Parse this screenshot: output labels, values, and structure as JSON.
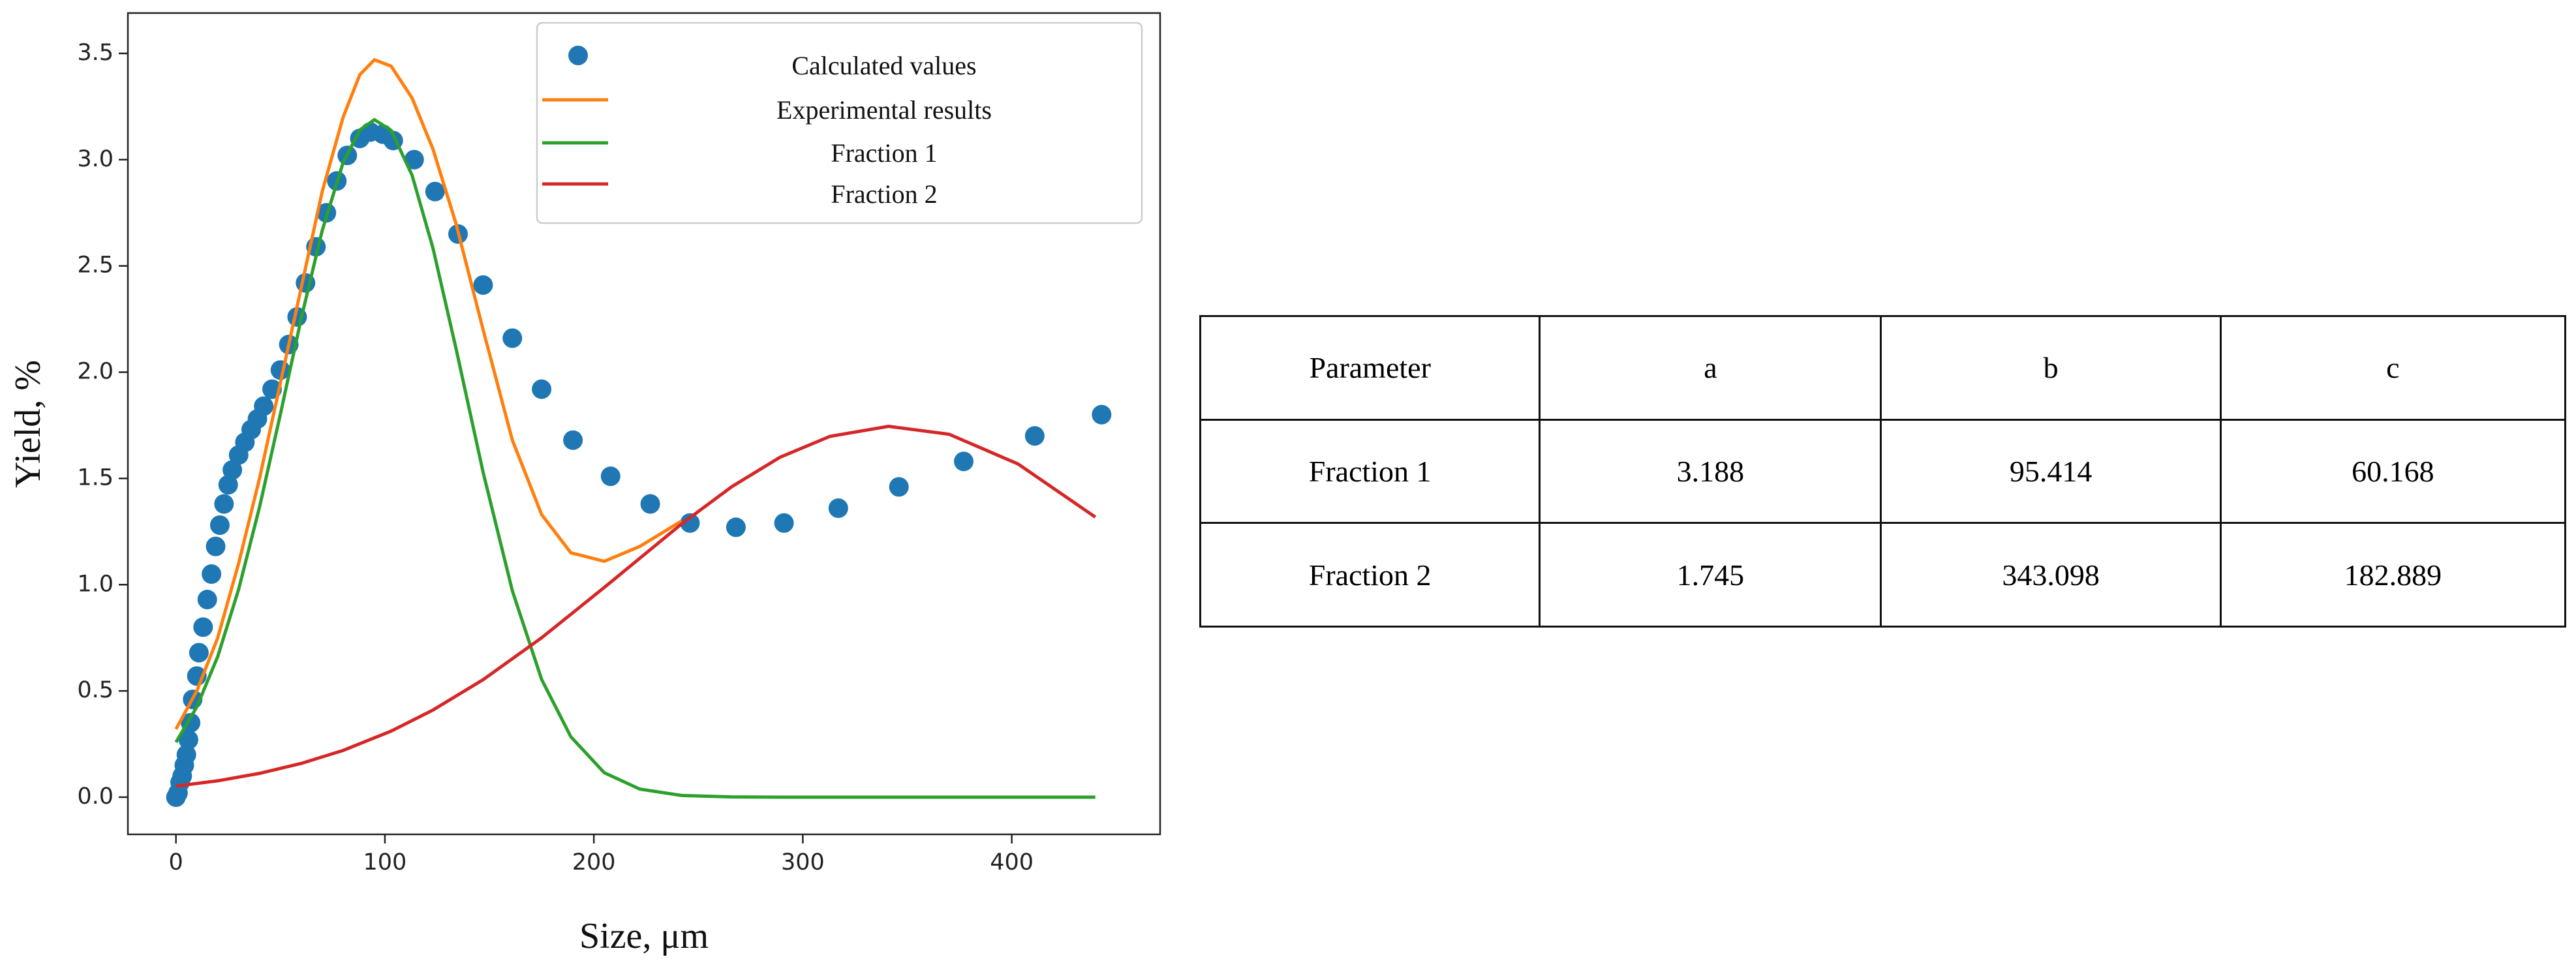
{
  "chart_data": {
    "type": "scatter-line",
    "x_label": "Size, μm",
    "y_label": "Yield, %",
    "xlim": [
      -23,
      471
    ],
    "ylim": [
      -0.175,
      3.69
    ],
    "xticks": [
      0,
      100,
      200,
      300,
      400
    ],
    "yticks": [
      {
        "value": 0,
        "label": "0.0"
      },
      0.5,
      {
        "value": 1,
        "label": "1.0"
      },
      1.5,
      {
        "value": 2,
        "label": "2.0"
      },
      2.5,
      {
        "value": 3,
        "label": "3.0"
      },
      3.5
    ],
    "legend": "upper right",
    "series": [
      {
        "name": "Calculated values",
        "kind": "scatter",
        "color": "#1f77b4",
        "x": [
          0,
          1,
          2,
          3,
          4,
          5,
          6,
          7,
          8,
          10,
          11,
          13,
          15,
          17,
          19,
          21,
          23,
          25,
          27,
          30,
          33,
          36,
          39,
          42,
          46,
          50,
          54,
          58,
          62,
          67,
          72,
          77,
          82,
          88,
          93,
          99,
          104,
          114,
          124,
          135,
          147,
          161,
          175,
          190,
          208,
          227,
          246,
          268,
          291,
          317,
          346,
          377,
          411,
          443
        ],
        "values": [
          0,
          0.02,
          0.07,
          0.1,
          0.15,
          0.2,
          0.27,
          0.35,
          0.46,
          0.57,
          0.68,
          0.8,
          0.93,
          1.05,
          1.18,
          1.28,
          1.38,
          1.47,
          1.54,
          1.61,
          1.67,
          1.73,
          1.78,
          1.84,
          1.92,
          2.01,
          2.13,
          2.26,
          2.42,
          2.59,
          2.75,
          2.9,
          3.02,
          3.1,
          3.13,
          3.12,
          3.09,
          3.0,
          2.85,
          2.65,
          2.41,
          2.16,
          1.92,
          1.68,
          1.51,
          1.38,
          1.29,
          1.27,
          1.29,
          1.36,
          1.46,
          1.58,
          1.7,
          1.8
        ]
      },
      {
        "name": "Experimental results",
        "kind": "line",
        "color": "#ff7f0e",
        "x": [
          0,
          10,
          20,
          30,
          40,
          50,
          60,
          70,
          80,
          88,
          95,
          103,
          113,
          123,
          134,
          147,
          161,
          175,
          189,
          205,
          222,
          242
        ],
        "values": [
          0.32,
          0.5,
          0.75,
          1.1,
          1.5,
          1.95,
          2.4,
          2.85,
          3.2,
          3.4,
          3.47,
          3.44,
          3.29,
          3.05,
          2.7,
          2.2,
          1.68,
          1.33,
          1.15,
          1.11,
          1.18,
          1.3
        ]
      },
      {
        "name": "Fraction 1",
        "kind": "line",
        "color": "#2ca02c",
        "x": [
          0,
          10,
          20,
          30,
          40,
          50,
          60,
          70,
          80,
          88,
          95,
          103,
          113,
          123,
          134,
          147,
          161,
          175,
          189,
          205,
          222,
          242,
          266,
          289,
          313,
          341,
          370,
          403,
          440
        ],
        "values": [
          0.258,
          0.425,
          0.662,
          0.978,
          1.365,
          1.803,
          2.255,
          2.667,
          2.986,
          3.14,
          3.188,
          3.138,
          2.927,
          2.584,
          2.113,
          1.529,
          0.971,
          0.554,
          0.284,
          0.115,
          0.038,
          0.008,
          0.001,
          0,
          0,
          0,
          0,
          0,
          0
        ]
      },
      {
        "name": "Fraction 2",
        "kind": "line",
        "color": "#d62728",
        "x": [
          0,
          20,
          40,
          60,
          80,
          103,
          123,
          147,
          175,
          205,
          242,
          266,
          289,
          313,
          341,
          370,
          403,
          440
        ],
        "values": [
          0.052,
          0.077,
          0.112,
          0.159,
          0.22,
          0.311,
          0.41,
          0.553,
          0.75,
          0.987,
          1.286,
          1.461,
          1.599,
          1.698,
          1.745,
          1.708,
          1.568,
          1.318
        ]
      }
    ]
  },
  "table": {
    "header": [
      "Parameter",
      "a",
      "b",
      "c"
    ],
    "rows": [
      [
        "Fraction 1",
        "3.188",
        "95.414",
        "60.168"
      ],
      [
        "Fraction 2",
        "1.745",
        "343.098",
        "182.889"
      ]
    ]
  }
}
